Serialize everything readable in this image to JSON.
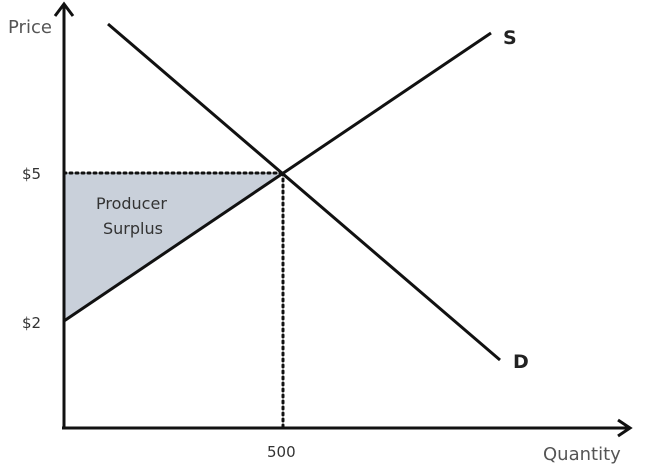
{
  "labels": {
    "y_axis": "Price",
    "x_axis": "Quantity",
    "price_high": "$5",
    "price_low": "$2",
    "quantity_eq": "500",
    "supply_curve": "S",
    "demand_curve": "D",
    "area_line1": "Producer",
    "area_line2": "Surplus"
  },
  "colors": {
    "axis": "#111111",
    "curve": "#111111",
    "shaded_area": "#c9d0da",
    "text": "#333333"
  }
}
